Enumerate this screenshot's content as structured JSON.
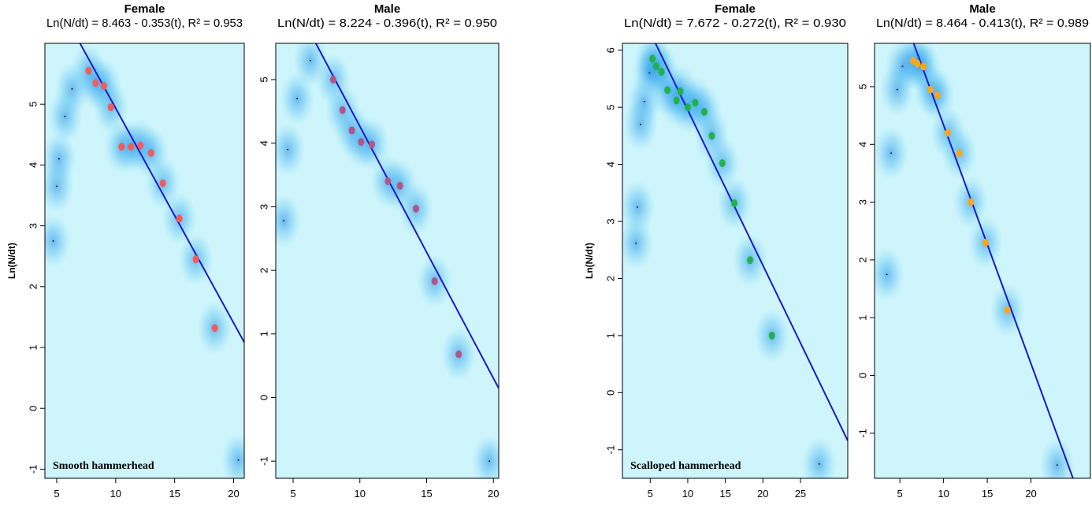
{
  "chart_data": [
    {
      "type": "scatter",
      "title": "Female",
      "subtitle": "Ln(N/dt) = 8.463 - 0.353(t), R² = 0.953",
      "y_label": "Ln(N/dt)",
      "annotation": "Smooth hammerhead",
      "xlim": [
        4.0,
        20.9
      ],
      "ylim": [
        -1.15,
        6.0
      ],
      "xticks": [
        5,
        10,
        15,
        20
      ],
      "yticks": [
        -1,
        0,
        1,
        2,
        3,
        4,
        5
      ],
      "fit": {
        "intercept": 8.463,
        "slope": -0.353,
        "color": "#1a1acc"
      },
      "points": {
        "color": "#f25c5c",
        "x": [
          7.7,
          8.3,
          9.0,
          9.6,
          10.5,
          11.3,
          12.1,
          13.0,
          14.0,
          15.4,
          16.8,
          18.4
        ],
        "y": [
          5.55,
          5.35,
          5.3,
          4.95,
          4.3,
          4.3,
          4.32,
          4.2,
          3.7,
          3.12,
          2.45,
          1.32
        ]
      },
      "other_points": {
        "color": "#000000",
        "x": [
          4.7,
          5.0,
          5.2,
          5.7,
          6.3,
          20.4
        ],
        "y": [
          2.75,
          3.65,
          4.1,
          4.8,
          5.25,
          -0.85
        ]
      }
    },
    {
      "type": "scatter",
      "title": "Male",
      "subtitle": "Ln(N/dt) = 8.224 - 0.396(t), R² = 0.950",
      "xlim": [
        3.7,
        20.4
      ],
      "ylim": [
        -1.27,
        5.57
      ],
      "xticks": [
        5,
        10,
        15,
        20
      ],
      "yticks": [
        -1,
        0,
        1,
        2,
        3,
        4,
        5
      ],
      "fit": {
        "intercept": 8.224,
        "slope": -0.396,
        "color": "#1a1acc"
      },
      "points": {
        "color": "#b2558a",
        "x": [
          8.0,
          8.7,
          9.4,
          10.1,
          10.9,
          12.1,
          13.0,
          14.2,
          15.6,
          17.4
        ],
        "y": [
          5.0,
          4.52,
          4.2,
          4.02,
          3.98,
          3.4,
          3.33,
          2.97,
          1.83,
          0.68
        ]
      },
      "other_points": {
        "color": "#000000",
        "x": [
          4.3,
          4.6,
          5.3,
          6.3,
          19.7
        ],
        "y": [
          2.78,
          3.9,
          4.7,
          5.3,
          -1.0
        ]
      }
    },
    {
      "type": "scatter",
      "title": "Female",
      "subtitle": "Ln(N/dt) = 7.672 - 0.272(t), R² = 0.930",
      "y_label": "Ln(N/dt)",
      "annotation": "Scalloped hammerhead",
      "xlim": [
        1.3,
        31.3
      ],
      "ylim": [
        -1.5,
        6.12
      ],
      "xticks": [
        5,
        10,
        15,
        20,
        25
      ],
      "yticks": [
        -1,
        0,
        1,
        2,
        3,
        4,
        5,
        6
      ],
      "fit": {
        "intercept": 7.672,
        "slope": -0.272,
        "color": "#1a1acc"
      },
      "points": {
        "color": "#22b14c",
        "x": [
          5.3,
          5.8,
          6.5,
          7.3,
          8.5,
          9.0,
          10.0,
          11.0,
          12.2,
          13.2,
          14.6,
          16.2,
          18.3,
          21.2
        ],
        "y": [
          5.85,
          5.72,
          5.62,
          5.3,
          5.12,
          5.28,
          5.0,
          5.08,
          4.92,
          4.5,
          4.02,
          3.32,
          2.32,
          1.0
        ]
      },
      "other_points": {
        "color": "#000000",
        "x": [
          3.1,
          3.3,
          3.7,
          4.2,
          4.9,
          27.5
        ],
        "y": [
          2.62,
          3.25,
          4.7,
          5.1,
          5.6,
          -1.25
        ]
      }
    },
    {
      "type": "scatter",
      "title": "Male",
      "subtitle": "Ln(N/dt) = 8.464 - 0.413(t), R² = 0.989",
      "xlim": [
        2.1,
        26.8
      ],
      "ylim": [
        -1.78,
        5.75
      ],
      "xticks": [
        5,
        10,
        15,
        20
      ],
      "yticks": [
        -1,
        0,
        1,
        2,
        3,
        4,
        5
      ],
      "fit": {
        "intercept": 8.464,
        "slope": -0.413,
        "color": "#1a1acc"
      },
      "points": {
        "color": "#f5a623",
        "x": [
          6.5,
          7.0,
          7.7,
          8.5,
          9.3,
          10.5,
          11.8,
          13.1,
          14.8,
          17.3
        ],
        "y": [
          5.45,
          5.4,
          5.35,
          4.95,
          4.85,
          4.2,
          3.85,
          3.0,
          2.3,
          1.13
        ]
      },
      "other_points": {
        "color": "#000000",
        "x": [
          3.5,
          4.0,
          4.7,
          5.3,
          23.0
        ],
        "y": [
          1.75,
          3.85,
          4.95,
          5.35,
          -1.55
        ]
      }
    }
  ]
}
